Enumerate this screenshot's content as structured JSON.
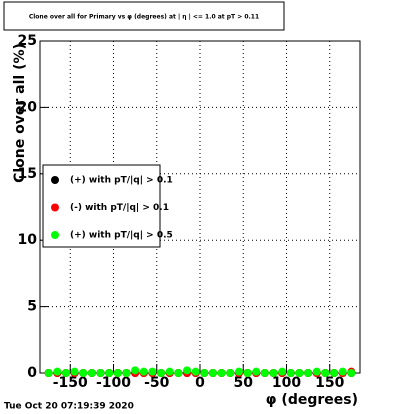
{
  "chart_data": {
    "type": "scatter",
    "title": "Clone  over all for Primary vs φ (degrees) at | η | <= 1.0 at pT > 0.11",
    "x_label": "φ (degrees)",
    "y_label": "Clone  over all (%)",
    "timestamp": "Tue Oct 20 07:19:39 2020",
    "x": [
      -175,
      -165,
      -155,
      -145,
      -135,
      -125,
      -115,
      -105,
      -95,
      -85,
      -75,
      -65,
      -55,
      -45,
      -35,
      -25,
      -15,
      -5,
      5,
      15,
      25,
      35,
      45,
      55,
      65,
      75,
      85,
      95,
      105,
      115,
      125,
      135,
      145,
      155,
      165,
      175
    ],
    "series": [
      {
        "name": "(+) with pT/|q| > 0.1",
        "color": "#000000",
        "values": [
          0,
          0,
          0,
          0,
          0,
          0,
          0,
          0,
          0,
          0,
          0,
          0,
          0,
          0,
          0,
          0,
          0,
          0,
          0,
          0,
          0,
          0,
          0,
          0,
          0,
          0,
          0,
          0,
          0,
          0,
          0,
          0,
          0,
          0,
          0,
          0
        ]
      },
      {
        "name": "(-) with pT/|q| > 0.1",
        "color": "#ff0000",
        "values": [
          0,
          0,
          0,
          0,
          0,
          0,
          0,
          0,
          0,
          0,
          0,
          0,
          0,
          0,
          0,
          0,
          0,
          0,
          0,
          0,
          0,
          0,
          0,
          0,
          0,
          0,
          0,
          0,
          0,
          0,
          0,
          0,
          0,
          0,
          0,
          0.1
        ]
      },
      {
        "name": "(+) with pT/|q| > 0.5",
        "color": "#00ff00",
        "values": [
          0,
          0.1,
          0,
          0.1,
          0,
          0,
          0,
          0,
          0,
          0,
          0.2,
          0.1,
          0.1,
          0,
          0.1,
          0,
          0.2,
          0.1,
          0,
          0,
          0,
          0,
          0.1,
          0,
          0.1,
          0,
          0,
          0.1,
          0,
          0,
          0,
          0.1,
          0,
          0,
          0.1,
          0
        ]
      }
    ],
    "xlim": [
      -185,
      185
    ],
    "ylim": [
      0,
      25
    ],
    "xticks": [
      -150,
      -100,
      -50,
      0,
      50,
      100,
      150
    ],
    "yticks": [
      0,
      5,
      10,
      15,
      20,
      25
    ],
    "grid": true
  }
}
